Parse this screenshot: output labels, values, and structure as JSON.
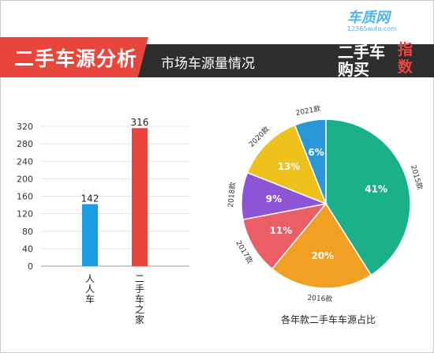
{
  "header": {
    "title": "二手车源分析",
    "subtitle": "市场车源量情况"
  },
  "logo": {
    "brand": "车质网",
    "url": "12365auto.com",
    "line1": "二手车",
    "line2": "购买",
    "tag": "指数"
  },
  "colors": {
    "header_bg": "#2e2e2e",
    "accent": "#e8453c",
    "bar_blue": "#1b9ce2",
    "bar_red": "#e8453c"
  },
  "chart_data": [
    {
      "type": "bar",
      "categories": [
        "人人车",
        "二手车之家"
      ],
      "values": [
        142,
        316
      ],
      "colors": [
        "#1b9ce2",
        "#e8453c"
      ],
      "ylim": [
        0,
        320
      ],
      "yticks": [
        0,
        40,
        80,
        120,
        160,
        200,
        240,
        280,
        320
      ],
      "grid": true
    },
    {
      "type": "pie",
      "title": "各年款二手车车源占比",
      "slices": [
        {
          "label": "2015款",
          "value": 41,
          "display": "41%",
          "color": "#19b08a"
        },
        {
          "label": "2016款",
          "value": 20,
          "display": "20%",
          "color": "#f2a024"
        },
        {
          "label": "2017款",
          "value": 11,
          "display": "11%",
          "color": "#ea5f66"
        },
        {
          "label": "2018款",
          "value": 9,
          "display": "9%",
          "color": "#8e54d6"
        },
        {
          "label": "2020款",
          "value": 13,
          "display": "13%",
          "color": "#eec21a"
        },
        {
          "label": "2021款",
          "value": 6,
          "display": "6%",
          "color": "#2a97d6"
        }
      ]
    }
  ]
}
